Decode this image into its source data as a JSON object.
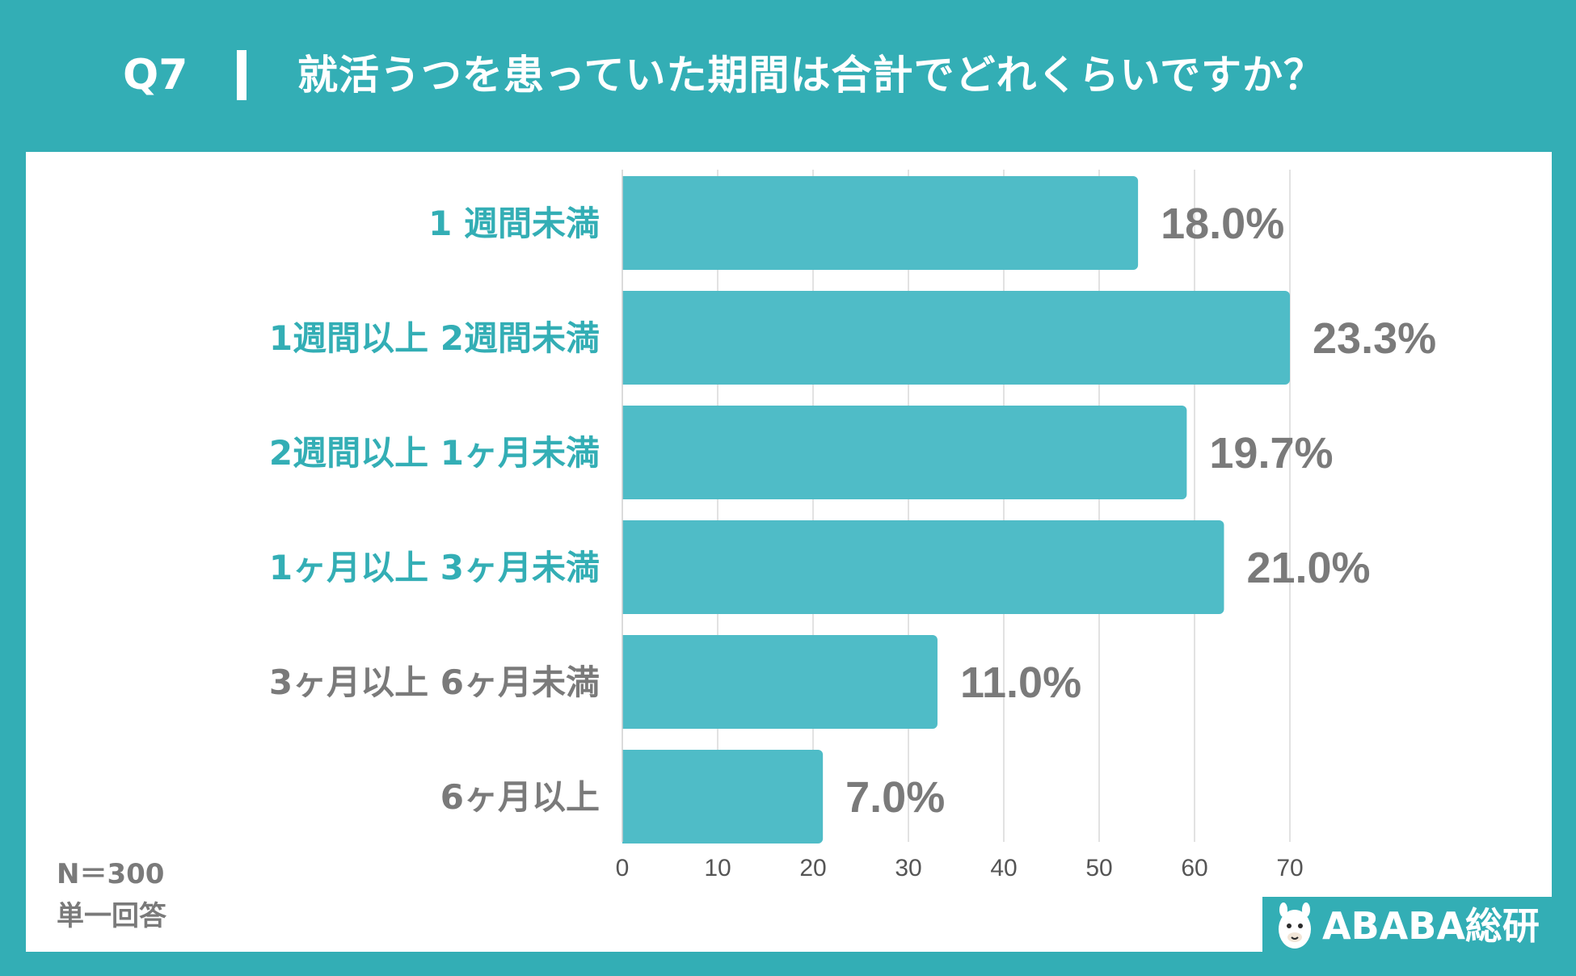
{
  "header": {
    "question_number": "Q7",
    "question_text": "就活うつを患っていた期間は合計でどれくらいですか？"
  },
  "footer": {
    "sample_size": "N＝300",
    "answer_type": "単一回答"
  },
  "logo": {
    "text": "ABABA総研",
    "icon": "alpaca-icon"
  },
  "colors": {
    "accent": "#33aeb5",
    "bar": "#4fbcc7",
    "highlight_label": "#33aeb5",
    "normal_label": "#7a7a7a",
    "value_label": "#7a7a7a",
    "grid": "#d9d9d9"
  },
  "chart_data": {
    "type": "bar",
    "orientation": "horizontal",
    "categories": [
      "1 週間未満",
      "1週間以上 2週間未満",
      "2週間以上 1ヶ月未満",
      "1ヶ月以上 3ヶ月未満",
      "3ヶ月以上 6ヶ月未満",
      "6ヶ月以上"
    ],
    "values": [
      18.0,
      23.3,
      19.7,
      21.0,
      11.0,
      7.0
    ],
    "value_labels": [
      "18.0%",
      "23.3%",
      "19.7%",
      "21.0%",
      "11.0%",
      "7.0%"
    ],
    "highlighted": [
      true,
      true,
      true,
      true,
      false,
      false
    ],
    "xlim": [
      0,
      23.3
    ],
    "xticks": [
      0,
      10,
      20,
      30,
      40,
      50,
      60,
      70
    ],
    "grid": true,
    "legend": "none"
  }
}
